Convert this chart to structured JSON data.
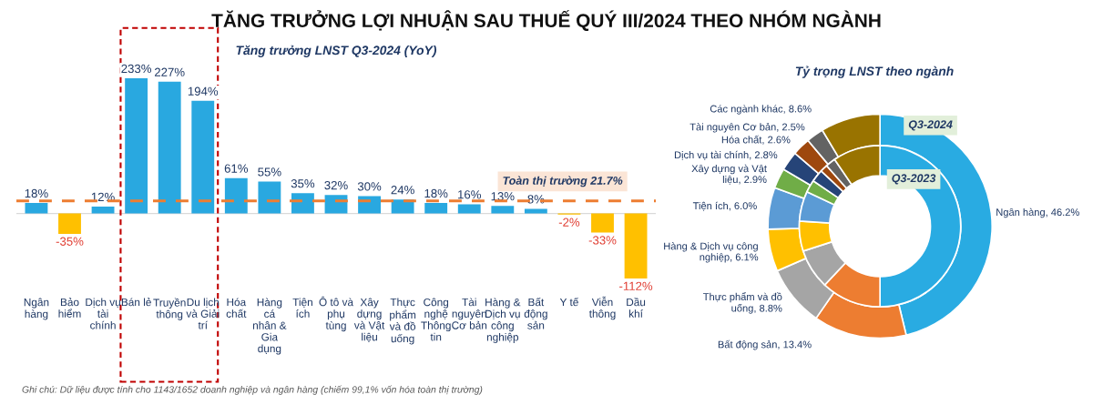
{
  "chart_data": [
    {
      "type": "bar",
      "title": "TĂNG TRƯỞNG LỢI NHUẬN SAU THUẾ QUÝ III/2024 THEO NHÓM NGÀNH",
      "subtitle": "Tăng trưởng LNST Q3-2024 (YoY)",
      "categories": [
        "Ngân\nhàng",
        "Bảo\nhiểm",
        "Dịch vụ\ntài\nchính",
        "Bán lẻ",
        "Truyền\nthông",
        "Du lịch\nvà Giải\ntrí",
        "Hóa\nchất",
        "Hàng\ncá\nnhân &\nGia\ndụng",
        "Tiện\ních",
        "Ô tô và\nphụ\ntùng",
        "Xây\ndựng\nvà Vật\nliệu",
        "Thực\nphẩm\nvà đồ\nuống",
        "Công\nnghệ\nThông\ntin",
        "Tài\nnguyên\nCơ bản",
        "Hàng &\nDịch vụ\ncông\nnghiệp",
        "Bất\nđộng\nsản",
        "Y tế",
        "Viễn\nthông",
        "Dầu\nkhí"
      ],
      "values": [
        18,
        -35,
        12,
        233,
        227,
        194,
        61,
        55,
        35,
        32,
        30,
        24,
        18,
        16,
        13,
        8,
        -2,
        -33,
        -112
      ],
      "value_labels": [
        "18%",
        "-35%",
        "12%",
        "233%",
        "227%",
        "194%",
        "61%",
        "55%",
        "35%",
        "32%",
        "30%",
        "24%",
        "18%",
        "16%",
        "13%",
        "8%",
        "-2%",
        "-33%",
        "-112%"
      ],
      "colors": [
        "#29a8e0",
        "#ffc000",
        "#29a8e0",
        "#29a8e0",
        "#29a8e0",
        "#29a8e0",
        "#29a8e0",
        "#29a8e0",
        "#29a8e0",
        "#29a8e0",
        "#29a8e0",
        "#29a8e0",
        "#29a8e0",
        "#29a8e0",
        "#29a8e0",
        "#29a8e0",
        "#ffc000",
        "#ffc000",
        "#ffc000"
      ],
      "ref_lines": [
        {
          "axis": "y",
          "value": 21.7,
          "label": "Toàn thị trường 21.7%",
          "color": "#ed7d31",
          "line_style": "dashed"
        }
      ],
      "annotations": [
        "Ghi chú: Dữ liệu được tính cho 1143/1652 doanh nghiệp và ngân hàng (chiếm 99,1% vốn hóa toàn thị trường)"
      ],
      "legend": false
    },
    {
      "type": "donut",
      "title": "Tỷ trọng LNST theo ngành",
      "categories": [
        "Ngân hàng",
        "Bất động sản",
        "Thực phẩm và đồ uống",
        "Hàng & Dịch vụ công nghiệp",
        "Tiện ích",
        "Xây dựng và Vật liệu",
        "Dịch vụ tài chính",
        "Hóa chất",
        "Tài nguyên Cơ bản",
        "Các ngành khác"
      ],
      "colors": [
        "#29abe2",
        "#ed7d31",
        "#a5a5a5",
        "#ffc000",
        "#5b9bd5",
        "#70ad47",
        "#264478",
        "#9e480e",
        "#636363",
        "#997300"
      ],
      "series": [
        {
          "name": "Q3-2024",
          "values": [
            46.2,
            13.4,
            8.8,
            6.1,
            6.0,
            2.9,
            2.8,
            2.6,
            2.5,
            8.6
          ],
          "value_labels": [
            "46.2%",
            "13.4%",
            "8.8%",
            "6.1%",
            "6.0%",
            "2.9%",
            "2.8%",
            "2.6%",
            "2.5%",
            "8.6%"
          ]
        },
        {
          "name": "Q3-2023",
          "values": [
            50,
            12,
            8,
            6,
            6,
            2.5,
            2.5,
            1.5,
            2,
            9.5
          ]
        }
      ],
      "legend": false
    }
  ]
}
